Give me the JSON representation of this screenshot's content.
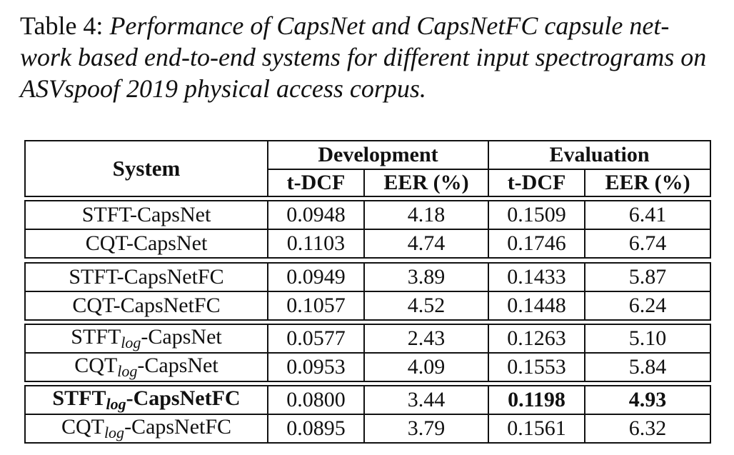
{
  "caption": {
    "label": "Table 4: ",
    "text": "Performance of CapsNet and CapsNetFC capsule net-work based end-to-end systems for different input spectrograms on ASVspoof 2019 physical access corpus."
  },
  "table": {
    "header": {
      "system": "System",
      "development": "Development",
      "evaluation": "Evaluation",
      "dev_tdcf": "t-DCF",
      "dev_eer": "EER (%)",
      "eval_tdcf": "t-DCF",
      "eval_eer": "EER (%)"
    },
    "groups": [
      [
        {
          "prefix": "STFT",
          "sub": "",
          "suffix": "-CapsNet",
          "bold_system": false,
          "dev_tdcf": "0.0948",
          "dev_eer": "4.18",
          "eval_tdcf": "0.1509",
          "eval_eer": "6.41",
          "bold_eval": false
        },
        {
          "prefix": "CQT",
          "sub": "",
          "suffix": "-CapsNet",
          "bold_system": false,
          "dev_tdcf": "0.1103",
          "dev_eer": "4.74",
          "eval_tdcf": "0.1746",
          "eval_eer": "6.74",
          "bold_eval": false
        }
      ],
      [
        {
          "prefix": "STFT",
          "sub": "",
          "suffix": "-CapsNetFC",
          "bold_system": false,
          "dev_tdcf": "0.0949",
          "dev_eer": "3.89",
          "eval_tdcf": "0.1433",
          "eval_eer": "5.87",
          "bold_eval": false
        },
        {
          "prefix": "CQT",
          "sub": "",
          "suffix": "-CapsNetFC",
          "bold_system": false,
          "dev_tdcf": "0.1057",
          "dev_eer": "4.52",
          "eval_tdcf": "0.1448",
          "eval_eer": "6.24",
          "bold_eval": false
        }
      ],
      [
        {
          "prefix": "STFT",
          "sub": "log",
          "suffix": "-CapsNet",
          "bold_system": false,
          "dev_tdcf": "0.0577",
          "dev_eer": "2.43",
          "eval_tdcf": "0.1263",
          "eval_eer": "5.10",
          "bold_eval": false
        },
        {
          "prefix": "CQT",
          "sub": "log",
          "suffix": "-CapsNet",
          "bold_system": false,
          "dev_tdcf": "0.0953",
          "dev_eer": "4.09",
          "eval_tdcf": "0.1553",
          "eval_eer": "5.84",
          "bold_eval": false
        }
      ],
      [
        {
          "prefix": "STFT",
          "sub": "log",
          "suffix": "-CapsNetFC",
          "bold_system": true,
          "dev_tdcf": "0.0800",
          "dev_eer": "3.44",
          "eval_tdcf": "0.1198",
          "eval_eer": "4.93",
          "bold_eval": true
        },
        {
          "prefix": "CQT",
          "sub": "log",
          "suffix": "-CapsNetFC",
          "bold_system": false,
          "dev_tdcf": "0.0895",
          "dev_eer": "3.79",
          "eval_tdcf": "0.1561",
          "eval_eer": "6.32",
          "bold_eval": false
        }
      ]
    ]
  }
}
